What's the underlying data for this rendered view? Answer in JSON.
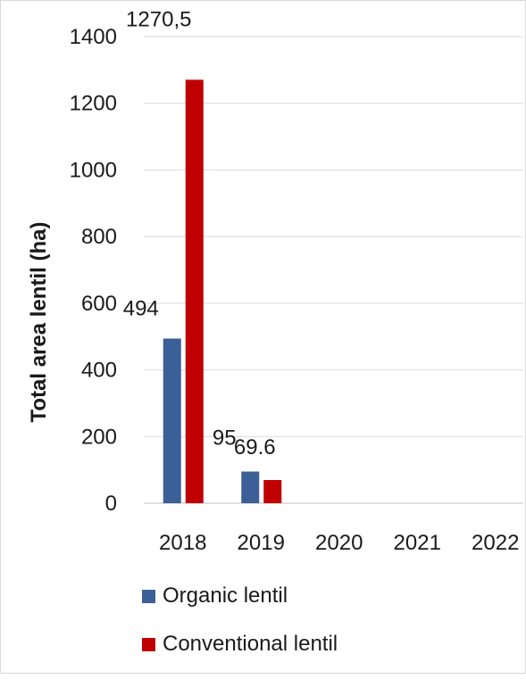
{
  "chart_data": {
    "type": "bar",
    "ylabel": "Total area lentil (ha)",
    "xlabel": "",
    "title": "",
    "ylim": [
      0,
      1400
    ],
    "yticks": [
      0,
      200,
      400,
      600,
      800,
      1000,
      1200,
      1400
    ],
    "categories": [
      "2018",
      "2019",
      "2020",
      "2021",
      "2022"
    ],
    "series": [
      {
        "name": "Organic lentil",
        "color": "#3b5f96",
        "values": [
          494,
          95,
          null,
          null,
          null
        ],
        "labels": [
          "494",
          "95",
          "",
          "",
          ""
        ]
      },
      {
        "name": "Conventional lentil",
        "color": "#c00000",
        "values": [
          1270.5,
          69.6,
          null,
          null,
          null
        ],
        "labels": [
          "1270,5",
          "69.6",
          "",
          "",
          ""
        ]
      }
    ],
    "grid": true,
    "legend_position": "bottom"
  }
}
